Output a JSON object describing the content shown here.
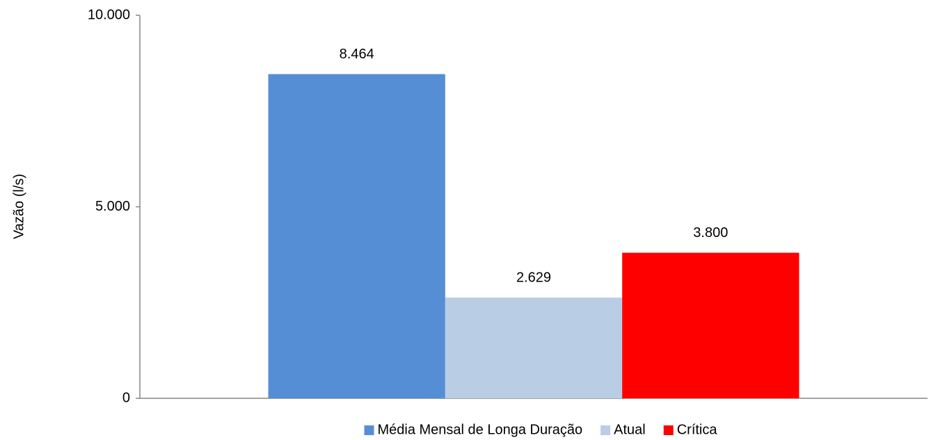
{
  "chart_data": {
    "type": "bar",
    "y_label": "Vazão (l/s)",
    "categories": [
      null
    ],
    "series": [
      {
        "name": "Média Mensal de Longa Duração",
        "color": "#558ed5",
        "values": [
          8464
        ],
        "value_labels": [
          "8.464"
        ]
      },
      {
        "name": "Atual",
        "color": "#b9cde5",
        "values": [
          2629
        ],
        "value_labels": [
          "2.629"
        ]
      },
      {
        "name": "Crítica",
        "color": "#ff0000",
        "values": [
          3800
        ],
        "value_labels": [
          "3.800"
        ]
      }
    ],
    "ylim": [
      0,
      10000
    ],
    "yticks": [
      0,
      {
        "value": 5000,
        "label": "5.000"
      },
      {
        "value": 10000,
        "label": "10.000"
      }
    ],
    "grid": false,
    "legend": "bottom"
  }
}
